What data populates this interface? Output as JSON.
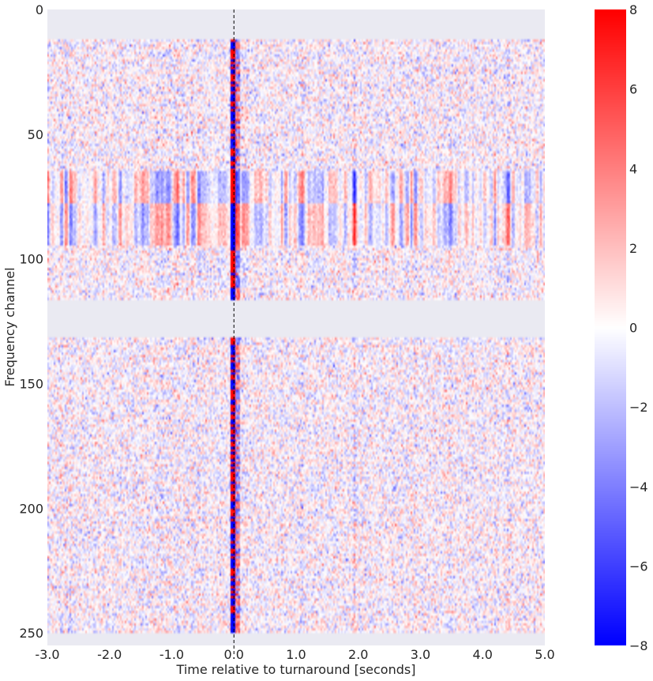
{
  "chart_data": {
    "type": "heatmap",
    "title": "",
    "xlabel": "Time relative to turnaround [seconds]",
    "ylabel": "Frequency channel",
    "xlim": [
      -3.0,
      5.0
    ],
    "ylim": [
      255,
      0
    ],
    "x_ticks": [
      -3.0,
      -2.0,
      -1.0,
      0.0,
      1.0,
      2.0,
      3.0,
      4.0,
      5.0
    ],
    "x_tick_labels": [
      "-3.0",
      "-2.0",
      "-1.0",
      "0.0",
      "1.0",
      "2.0",
      "3.0",
      "4.0",
      "5.0"
    ],
    "y_ticks": [
      0,
      50,
      100,
      150,
      200,
      250
    ],
    "y_tick_labels": [
      "0",
      "50",
      "100",
      "150",
      "200",
      "250"
    ],
    "colormap": "bwr",
    "colorbar": {
      "vmin": -8,
      "vmax": 8,
      "ticks": [
        8,
        6,
        4,
        2,
        0,
        -2,
        -4,
        -6,
        -8
      ],
      "tick_labels": [
        "8",
        "6",
        "4",
        "2",
        "0",
        "−2",
        "−4",
        "−6",
        "−8"
      ],
      "colors": {
        "low": "#0000ff",
        "mid": "#ffffff",
        "high": "#ff0000"
      }
    },
    "masked_channel_ranges": [
      [
        0,
        11
      ],
      [
        116,
        131
      ],
      [
        250,
        255
      ]
    ],
    "mask_color": "#eaeaf2",
    "strong_band_channels": [
      [
        64,
        76
      ],
      [
        77,
        93
      ]
    ],
    "vertical_marker": {
      "x": 0.0,
      "style": "dashed",
      "color": "#000000"
    },
    "grid": false,
    "legend": "none",
    "description": "Noise-like signed intensity per channel vs time; strong alternating red/blue column at t=0; banded vertical stripes in channels 64-93 with sign flip at ~77."
  }
}
